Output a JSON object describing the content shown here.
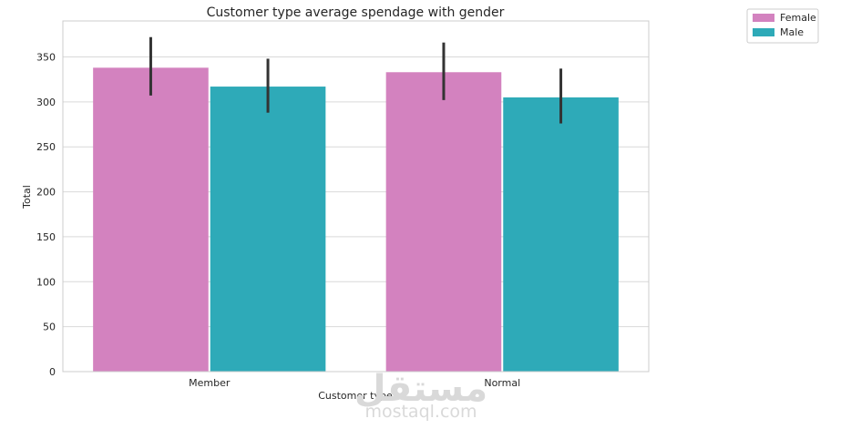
{
  "chart_data": {
    "type": "bar",
    "title": "Customer type average spendage with gender",
    "xlabel": "Customer type",
    "ylabel": "Total",
    "categories": [
      "Member",
      "Normal"
    ],
    "series": [
      {
        "name": "Female",
        "color": "#d382bf",
        "values": [
          338,
          333
        ],
        "error_low": [
          307,
          302
        ],
        "error_high": [
          372,
          366
        ]
      },
      {
        "name": "Male",
        "color": "#2eaab8",
        "values": [
          317,
          305
        ],
        "error_low": [
          288,
          276
        ],
        "error_high": [
          348,
          337
        ]
      }
    ],
    "ylim": [
      0,
      390
    ],
    "yticks": [
      0,
      50,
      100,
      150,
      200,
      250,
      300,
      350
    ],
    "grid": true,
    "legend_position": "outside-top-right",
    "error_bar_color": "#333333"
  },
  "watermark": {
    "arabic": "مستقل",
    "latin": "mostaql.com"
  }
}
